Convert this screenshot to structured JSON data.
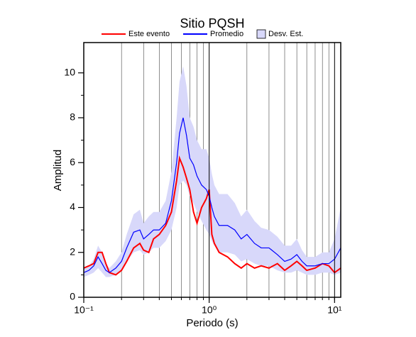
{
  "chart_data": {
    "type": "line",
    "title": "Sitio PQSH",
    "x_label": "Periodo (s)",
    "y_label": "Amplitud",
    "x_scale": "log",
    "grid": "x",
    "xlim": [
      0.1,
      11.2
    ],
    "ylim": [
      0,
      11.35
    ],
    "xticks": [
      {
        "value": 0.1,
        "label": "10⁻¹"
      },
      {
        "value": 1,
        "label": "10⁰"
      },
      {
        "value": 10,
        "label": "10¹"
      }
    ],
    "yticks": [
      0,
      2,
      4,
      6,
      8,
      10
    ],
    "x": [
      0.1,
      0.11,
      0.12,
      0.13,
      0.14,
      0.15,
      0.16,
      0.18,
      0.2,
      0.22,
      0.25,
      0.28,
      0.3,
      0.33,
      0.36,
      0.4,
      0.45,
      0.5,
      0.55,
      0.58,
      0.62,
      0.66,
      0.7,
      0.75,
      0.8,
      0.87,
      0.95,
      1.0,
      1.05,
      1.1,
      1.2,
      1.4,
      1.6,
      1.8,
      2.0,
      2.3,
      2.6,
      3.0,
      3.5,
      4.0,
      4.5,
      5.0,
      5.5,
      6.0,
      7.0,
      8.0,
      9.0,
      10,
      11.2
    ],
    "series": [
      {
        "name": "Este evento",
        "color": "#ff0000",
        "values": [
          1.3,
          1.4,
          1.5,
          2.0,
          2.0,
          1.5,
          1.1,
          1.0,
          1.2,
          1.6,
          2.2,
          2.4,
          2.1,
          2.0,
          2.6,
          2.8,
          3.2,
          3.8,
          5.2,
          6.2,
          5.8,
          5.3,
          4.8,
          3.8,
          3.3,
          4.0,
          4.4,
          4.8,
          2.8,
          2.4,
          2.0,
          1.8,
          1.5,
          1.3,
          1.5,
          1.3,
          1.4,
          1.3,
          1.5,
          1.2,
          1.4,
          1.6,
          1.4,
          1.2,
          1.3,
          1.5,
          1.4,
          1.1,
          1.3
        ]
      },
      {
        "name": "Promedio",
        "color": "#0000ff",
        "values": [
          1.1,
          1.2,
          1.4,
          1.8,
          1.5,
          1.2,
          1.1,
          1.3,
          1.6,
          2.2,
          2.9,
          3.0,
          2.6,
          2.8,
          3.0,
          3.0,
          3.3,
          4.3,
          6.0,
          7.3,
          8.0,
          7.2,
          6.2,
          5.9,
          5.4,
          5.0,
          4.8,
          4.5,
          4.0,
          3.6,
          3.2,
          3.2,
          3.0,
          2.6,
          2.8,
          2.4,
          2.2,
          2.2,
          1.9,
          1.6,
          1.7,
          1.9,
          1.6,
          1.4,
          1.4,
          1.5,
          1.5,
          1.7,
          2.2
        ]
      }
    ],
    "band": {
      "name": "Desv. Est.",
      "color": "#d8d8fa",
      "lower": [
        0.9,
        1.0,
        1.1,
        1.3,
        1.1,
        0.9,
        0.9,
        1.0,
        1.2,
        1.6,
        2.0,
        2.1,
        1.9,
        2.0,
        2.2,
        2.2,
        2.5,
        3.0,
        4.0,
        5.0,
        5.2,
        5.0,
        4.5,
        4.2,
        3.8,
        3.4,
        3.0,
        2.8,
        2.5,
        2.3,
        2.0,
        2.0,
        1.9,
        1.6,
        1.7,
        1.5,
        1.4,
        1.4,
        1.2,
        1.1,
        1.1,
        1.2,
        1.1,
        1.0,
        1.0,
        1.1,
        1.1,
        1.0,
        1.1
      ],
      "upper": [
        1.3,
        1.4,
        1.7,
        2.3,
        2.0,
        1.5,
        1.3,
        1.6,
        2.0,
        2.8,
        3.7,
        3.9,
        3.3,
        3.6,
        3.8,
        3.8,
        4.3,
        5.6,
        8.0,
        9.6,
        10.3,
        9.4,
        8.0,
        7.6,
        7.0,
        6.6,
        6.6,
        6.2,
        5.5,
        5.0,
        4.6,
        4.6,
        4.2,
        3.6,
        3.9,
        3.4,
        3.1,
        3.0,
        2.7,
        2.3,
        2.3,
        2.6,
        2.1,
        1.8,
        1.8,
        2.0,
        2.0,
        2.6,
        4.0
      ]
    }
  }
}
